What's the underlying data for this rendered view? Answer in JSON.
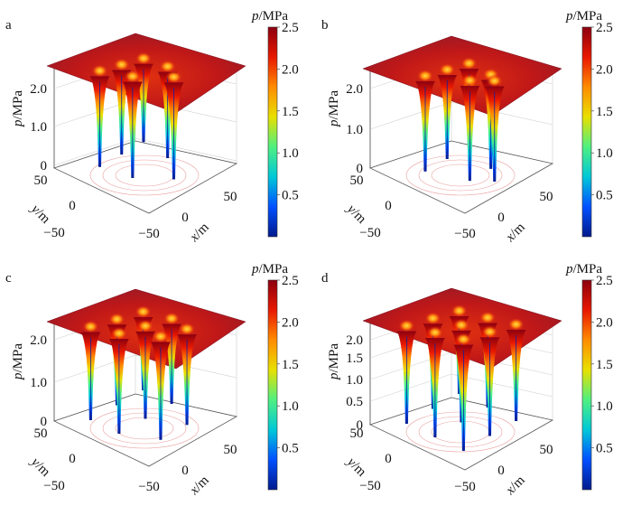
{
  "figure": {
    "colorbar_range": [
      0,
      2.5
    ],
    "colorbar_colors": [
      "#001a8c",
      "#0050ff",
      "#00c8d8",
      "#4ef080",
      "#e8e000",
      "#ff8c00",
      "#e81800",
      "#8c0010"
    ]
  },
  "panels": [
    {
      "label": "a",
      "z_ticks": [
        "2.0",
        "1.0",
        "0"
      ],
      "y_ticks": [
        "50",
        "0",
        "−50"
      ],
      "x_ticks": [
        "−50",
        "0",
        "50"
      ],
      "z_label": {
        "var": "p",
        "unit": "/MPa"
      },
      "y_label": {
        "var": "y",
        "unit": "/m"
      },
      "x_label": {
        "var": "x",
        "unit": "/m"
      },
      "colorbar_title": {
        "var": "p",
        "unit": "/MPa"
      },
      "colorbar_ticks": [
        "2.5",
        "2.0",
        "1.5",
        "1.0",
        "0.5"
      ]
    },
    {
      "label": "b",
      "z_ticks": [
        "2.0",
        "1.0",
        "0"
      ],
      "y_ticks": [
        "50",
        "0",
        "−50"
      ],
      "x_ticks": [
        "−50",
        "0",
        "50"
      ],
      "z_label": {
        "var": "p",
        "unit": "/MPa"
      },
      "y_label": {
        "var": "y",
        "unit": "/m"
      },
      "x_label": {
        "var": "x",
        "unit": "/m"
      },
      "colorbar_title": {
        "var": "p",
        "unit": "/MPa"
      },
      "colorbar_ticks": [
        "2.5",
        "2.0",
        "1.5",
        "1.0",
        "0.5"
      ]
    },
    {
      "label": "c",
      "z_ticks": [
        "2.0",
        "1.0",
        "0"
      ],
      "y_ticks": [
        "50",
        "0",
        "−50"
      ],
      "x_ticks": [
        "−50",
        "0",
        "50"
      ],
      "z_label": {
        "var": "p",
        "unit": "/MPa"
      },
      "y_label": {
        "var": "y",
        "unit": "/m"
      },
      "x_label": {
        "var": "x",
        "unit": "/m"
      },
      "colorbar_title": {
        "var": "p",
        "unit": "/MPa"
      },
      "colorbar_ticks": [
        "2.5",
        "2.0",
        "1.5",
        "1.0",
        "0.5"
      ]
    },
    {
      "label": "d",
      "z_ticks": [
        "2.0",
        "1.5",
        "1.0",
        "0.5",
        "0"
      ],
      "y_ticks": [
        "50",
        "0",
        "−50"
      ],
      "x_ticks": [
        "−50",
        "0",
        "50"
      ],
      "z_label": {
        "var": "p",
        "unit": "/MPa"
      },
      "y_label": {
        "var": "y",
        "unit": "/m"
      },
      "x_label": {
        "var": "x",
        "unit": "/m"
      },
      "colorbar_title": {
        "var": "p",
        "unit": "/MPa"
      },
      "colorbar_ticks": [
        "2.5",
        "2.0",
        "1.5",
        "1.0",
        "0.5"
      ]
    }
  ],
  "chart_data": [
    {
      "type": "surface3d",
      "panel": "a",
      "z_range": [
        0,
        2.5
      ],
      "x_range": [
        -50,
        50
      ],
      "y_range": [
        -50,
        50
      ],
      "wells": [
        [
          -25,
          25
        ],
        [
          0,
          25
        ],
        [
          25,
          25
        ],
        [
          -20,
          -5
        ],
        [
          20,
          -5
        ],
        [
          0,
          -30
        ]
      ],
      "plateau_pressure": 2.2
    },
    {
      "type": "surface3d",
      "panel": "b",
      "z_range": [
        0,
        2.5
      ],
      "x_range": [
        -50,
        50
      ],
      "y_range": [
        -50,
        50
      ],
      "wells": [
        [
          -25,
          15
        ],
        [
          0,
          15
        ],
        [
          25,
          15
        ],
        [
          -12,
          -20
        ],
        [
          12,
          -20
        ],
        [
          0,
          -35
        ]
      ],
      "plateau_pressure": 2.2
    },
    {
      "type": "surface3d",
      "panel": "c",
      "z_range": [
        0,
        2.5
      ],
      "x_range": [
        -50,
        50
      ],
      "y_range": [
        -50,
        50
      ],
      "wells": [
        [
          -30,
          30
        ],
        [
          0,
          30
        ],
        [
          30,
          30
        ],
        [
          -30,
          0
        ],
        [
          0,
          0
        ],
        [
          30,
          0
        ],
        [
          -15,
          -30
        ],
        [
          15,
          -30
        ]
      ],
      "plateau_pressure": 2.2
    },
    {
      "type": "surface3d",
      "panel": "d",
      "z_range": [
        0,
        2.5
      ],
      "x_range": [
        -50,
        50
      ],
      "y_range": [
        -50,
        50
      ],
      "wells": [
        [
          -30,
          30
        ],
        [
          0,
          30
        ],
        [
          30,
          30
        ],
        [
          -30,
          0
        ],
        [
          0,
          0
        ],
        [
          30,
          0
        ],
        [
          -30,
          -30
        ],
        [
          0,
          -30
        ],
        [
          30,
          -30
        ]
      ],
      "plateau_pressure": 2.2
    }
  ]
}
